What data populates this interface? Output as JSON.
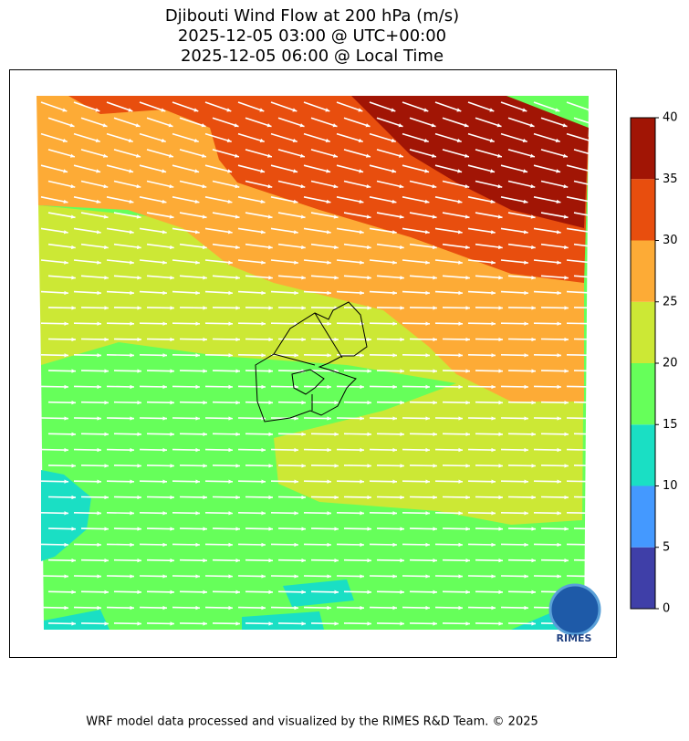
{
  "title": [
    "Djibouti Wind Flow at 200 hPa (m/s)",
    "2025-12-05 03:00 @ UTC+00:00",
    "2025-12-05 06:00 @ Local Time"
  ],
  "colorbar": {
    "lim": [
      0,
      40
    ],
    "ticks": [
      0,
      5,
      10,
      15,
      20,
      25,
      30,
      35,
      40
    ],
    "colors": [
      "#3f3fa8",
      "#4499ff",
      "#1adfc4",
      "#66ff5a",
      "#cce835",
      "#fdab36",
      "#e84e0e",
      "#a11505"
    ]
  },
  "logo": "RIMES",
  "footer": "WRF model data processed and visualized by the RIMES R&D Team. © 2025"
}
